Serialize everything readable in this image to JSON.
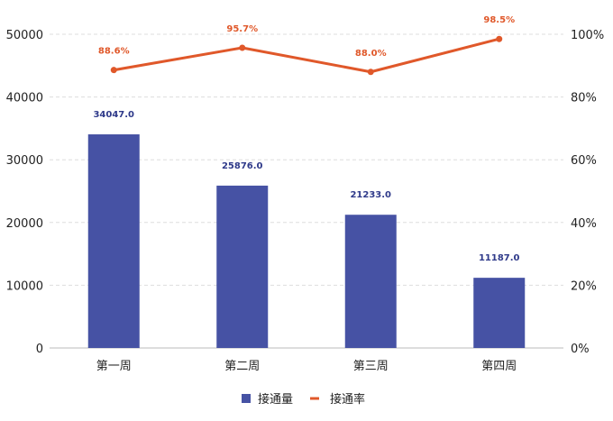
{
  "chart_data": {
    "type": "bar",
    "categories": [
      "第一周",
      "第二周",
      "第三周",
      "第四周"
    ],
    "series": [
      {
        "name": "接通量",
        "type": "bar",
        "axis": "left",
        "values": [
          34047.0,
          25876.0,
          21233.0,
          11187.0
        ],
        "labels": [
          "34047.0",
          "25876.0",
          "21233.0",
          "11187.0"
        ]
      },
      {
        "name": "接通率",
        "type": "line",
        "axis": "right",
        "values": [
          88.6,
          95.7,
          88.0,
          98.5
        ],
        "labels": [
          "88.6%",
          "95.7%",
          "88.0%",
          "98.5%"
        ]
      }
    ],
    "left_axis": {
      "ylim": [
        0,
        50000
      ],
      "ticks": [
        "0",
        "10000",
        "20000",
        "30000",
        "40000",
        "50000"
      ]
    },
    "right_axis": {
      "ylim": [
        0,
        100
      ],
      "ticks": [
        "0%",
        "20%",
        "40%",
        "60%",
        "80%",
        "100%"
      ]
    },
    "grid": true,
    "legend_position": "bottom-center"
  },
  "colors": {
    "bar": "#4652a4",
    "line": "#e0582a",
    "bar_label": "#2f3a8a",
    "line_label": "#e0582a",
    "grid": "#dddddd",
    "axis": "#bbbbbb"
  }
}
